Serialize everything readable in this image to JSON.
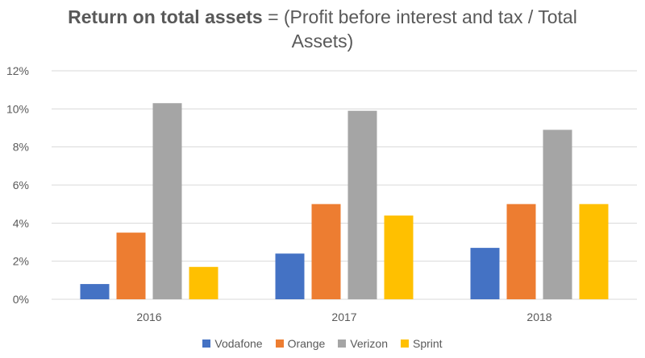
{
  "chart_data": {
    "type": "bar",
    "title_bold": "Return on total assets",
    "title_rest_line1": " = (Profit before interest and tax / Total",
    "title_rest_line2": "Assets)",
    "categories": [
      "2016",
      "2017",
      "2018"
    ],
    "series": [
      {
        "name": "Vodafone",
        "color": "#4472C4",
        "values": [
          0.8,
          2.4,
          2.7
        ]
      },
      {
        "name": "Orange",
        "color": "#ED7D31",
        "values": [
          3.5,
          5.0,
          5.0
        ]
      },
      {
        "name": "Verizon",
        "color": "#A5A5A5",
        "values": [
          10.3,
          9.9,
          8.9
        ]
      },
      {
        "name": "Sprint",
        "color": "#FFC000",
        "values": [
          1.7,
          4.4,
          5.0
        ]
      }
    ],
    "yticks": [
      "0%",
      "2%",
      "4%",
      "6%",
      "8%",
      "10%",
      "12%"
    ],
    "ylim": [
      0,
      12
    ],
    "grid": true,
    "legend_position": "bottom"
  }
}
